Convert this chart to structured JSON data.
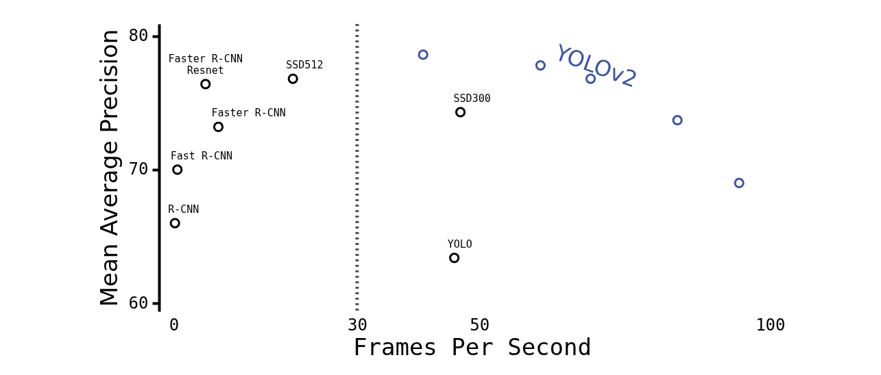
{
  "chart_data": {
    "type": "scatter",
    "xlabel": "Frames Per Second",
    "ylabel": "Mean Average Precision",
    "xlim": [
      -2.4,
      100
    ],
    "ylim": [
      59.4,
      80.9
    ],
    "xticks": [
      0,
      30,
      50,
      100
    ],
    "yticks": [
      60,
      70,
      80
    ],
    "grid": false,
    "legend": false,
    "marker": "circle",
    "series": [
      {
        "color": "#000000",
        "x": [
          0.2,
          0.6,
          7.3,
          5.2,
          19.5,
          46.9,
          45.9
        ],
        "values": [
          66.0,
          70.0,
          73.2,
          76.4,
          76.8,
          74.3,
          63.4
        ]
      },
      {
        "name": "YOLOv2",
        "color": "#3b55a8",
        "x": [
          40.8,
          60.0,
          68.2,
          82.4,
          92.5
        ],
        "values": [
          78.6,
          77.8,
          76.8,
          73.7,
          69.0
        ]
      }
    ],
    "ref_lines": [
      {
        "axis": "x",
        "value": 30,
        "color": "#555555",
        "line_style": "dotted"
      }
    ],
    "annotations": [
      {
        "text": "R-CNN",
        "x": 0.2,
        "y": 66.0
      },
      {
        "text": "Fast R-CNN",
        "x": 0.6,
        "y": 70.0
      },
      {
        "text": "Faster R-CNN",
        "x": 7.3,
        "y": 73.2
      },
      {
        "text": "Faster R-CNN\nResnet",
        "x": 5.2,
        "y": 76.4
      },
      {
        "text": "SSD512",
        "x": 19.5,
        "y": 76.8
      },
      {
        "text": "SSD300",
        "x": 46.9,
        "y": 74.3
      },
      {
        "text": "YOLO",
        "x": 45.9,
        "y": 63.4
      }
    ]
  }
}
